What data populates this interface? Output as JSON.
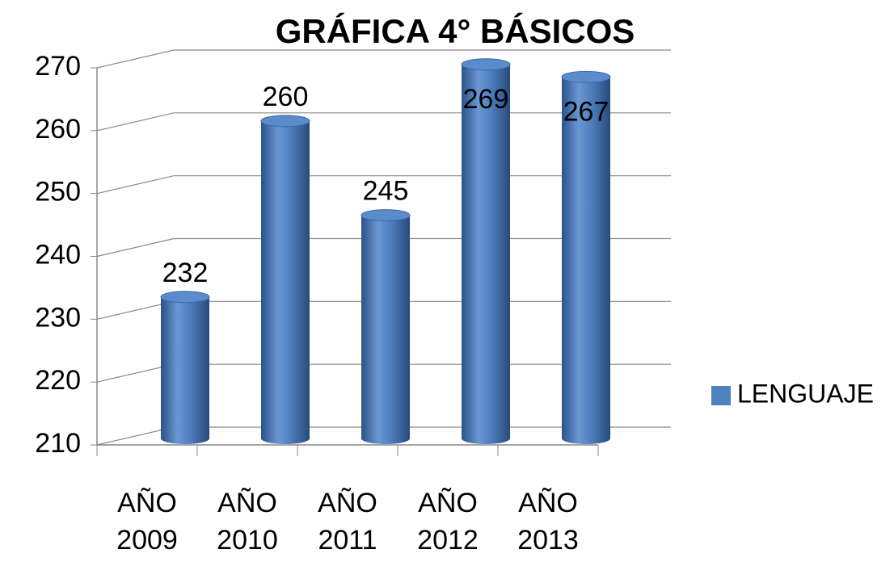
{
  "chart_data": {
    "type": "bar",
    "title": "GRÁFICA 4° BÁSICOS",
    "categories": [
      "AÑO 2009",
      "AÑO 2010",
      "AÑO 2011",
      "AÑO 2012",
      "AÑO 2013"
    ],
    "series": [
      {
        "name": "LENGUAJE",
        "color": "#4f81bd",
        "values": [
          232,
          260,
          245,
          269,
          267
        ]
      }
    ],
    "ylim": [
      210,
      270
    ],
    "yticks": [
      210,
      220,
      230,
      240,
      250,
      260,
      270
    ],
    "grid": true,
    "legend": "right"
  }
}
